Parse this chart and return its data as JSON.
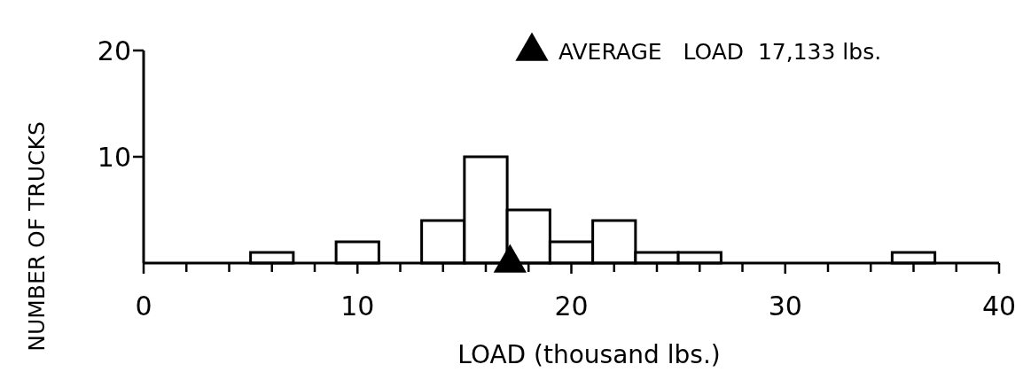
{
  "chart_data": {
    "type": "histogram",
    "xlabel": "LOAD (thousand lbs.)",
    "ylabel": "NUMBER OF TRUCKS",
    "bins": [
      5,
      7,
      9,
      11,
      13,
      15,
      17,
      19,
      21,
      23,
      25,
      27,
      29,
      31,
      33,
      35,
      37
    ],
    "values": [
      1,
      0,
      2,
      0,
      4,
      10,
      5,
      2,
      4,
      1,
      1,
      0,
      0,
      0,
      0,
      1
    ],
    "color": "#ffffff",
    "xlim": [
      0,
      40
    ],
    "xticks": [
      0,
      {
        "value": 2,
        "label": null
      },
      {
        "value": 4,
        "label": null
      },
      {
        "value": 6,
        "label": null
      },
      {
        "value": 8,
        "label": null
      },
      10,
      {
        "value": 12,
        "label": null
      },
      {
        "value": 14,
        "label": null
      },
      {
        "value": 16,
        "label": null
      },
      {
        "value": 18,
        "label": null
      },
      20,
      {
        "value": 22,
        "label": null
      },
      {
        "value": 24,
        "label": null
      },
      {
        "value": 26,
        "label": null
      },
      {
        "value": 28,
        "label": null
      },
      30,
      {
        "value": 32,
        "label": null
      },
      {
        "value": 34,
        "label": null
      },
      {
        "value": 36,
        "label": null
      },
      {
        "value": 38,
        "label": null
      },
      40
    ],
    "ylim": [
      0,
      20
    ],
    "yticks": [
      10,
      20
    ],
    "series": [
      {
        "type": "scatter",
        "name": "AVERAGE   LOAD  17,133 lbs.",
        "x": [
          17.133
        ],
        "values": [
          0
        ],
        "color": "#000000"
      }
    ],
    "marker": "triangle",
    "legend": "top right",
    "grid": false
  }
}
